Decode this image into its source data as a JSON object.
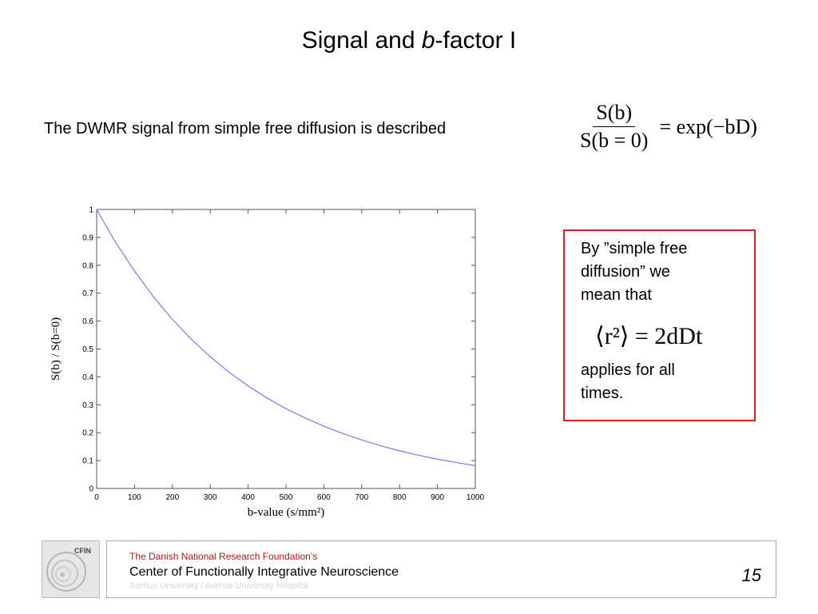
{
  "slide": {
    "title_pre": "Signal and ",
    "title_italic": "b",
    "title_post": "-factor I",
    "intro_text": "The DWMR signal from simple free diffusion is described",
    "equation1": {
      "numerator": "S(b)",
      "denominator": "S(b = 0)",
      "rhs": "= exp(−bD)"
    },
    "box": {
      "line1": "By ”simple free",
      "line2": "diffusion” we",
      "line3": "mean that",
      "equation": "⟨r²⟩ = 2dDt",
      "line4": "applies for all",
      "line5": "times."
    },
    "page_number": "15"
  },
  "footer": {
    "org_line": "The Danish National Research Foundation’s",
    "center_name": "Center of Functionally Integrative Neuroscience",
    "university": "Aarhus University / Aarhus University Hospital",
    "logo_text": "CFIN"
  },
  "chart_data": {
    "type": "line",
    "xlabel": "b-value (s/mm²)",
    "ylabel": "S(b) / S(b=0)",
    "xlim": [
      0,
      1000
    ],
    "ylim": [
      0,
      1
    ],
    "x_ticks": [
      "0",
      "100",
      "200",
      "300",
      "400",
      "500",
      "600",
      "700",
      "800",
      "900",
      "1000"
    ],
    "y_ticks": [
      "0",
      "0.1",
      "0.2",
      "0.3",
      "0.4",
      "0.5",
      "0.6",
      "0.7",
      "0.8",
      "0.9",
      "1"
    ],
    "grid": false,
    "series": [
      {
        "color": "#7a7aff",
        "x": [
          0,
          50,
          100,
          150,
          200,
          250,
          300,
          350,
          400,
          450,
          500,
          550,
          600,
          650,
          700,
          750,
          800,
          850,
          900,
          950,
          1000
        ],
        "y": [
          1.0,
          0.882,
          0.779,
          0.687,
          0.606,
          0.535,
          0.472,
          0.416,
          0.368,
          0.324,
          0.286,
          0.253,
          0.223,
          0.197,
          0.174,
          0.153,
          0.135,
          0.119,
          0.105,
          0.093,
          0.082
        ]
      }
    ]
  }
}
